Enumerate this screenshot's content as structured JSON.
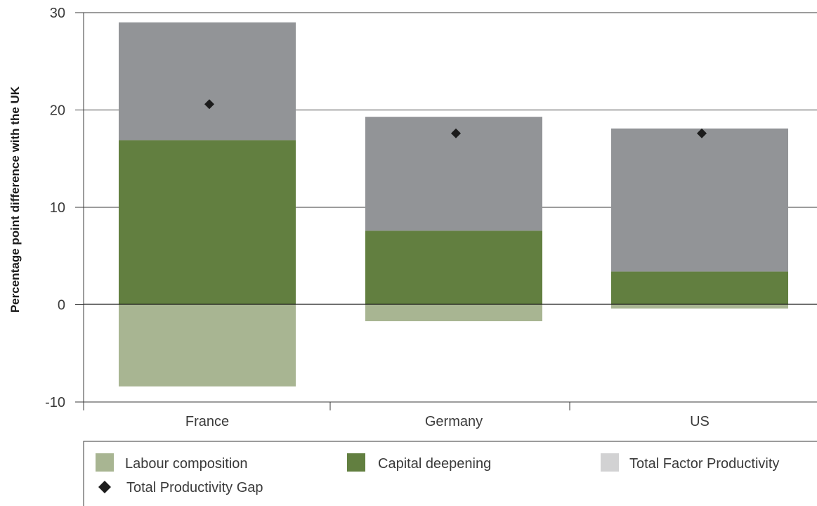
{
  "chart_data": {
    "type": "bar",
    "stacked": true,
    "categories": [
      "France",
      "Germany",
      "US"
    ],
    "ylabel": "Percentage point difference with the UK",
    "ylim": [
      -10,
      30
    ],
    "yticks": [
      30,
      20,
      10,
      0,
      -10
    ],
    "series": [
      {
        "name": "Labour composition",
        "values": [
          -8.4,
          -1.7,
          -0.4
        ],
        "color": "#a8b592"
      },
      {
        "name": "Capital deepening",
        "values": [
          16.9,
          7.6,
          3.4
        ],
        "color": "#627f40"
      },
      {
        "name": "Total Factor Productivity",
        "values": [
          12.1,
          11.7,
          14.7
        ],
        "color": "#929497"
      }
    ],
    "markers": {
      "name": "Total Productivity Gap",
      "values": [
        20.6,
        17.6,
        17.6
      ],
      "color": "#1c1c1c"
    },
    "legend_swatch_colors": {
      "Labour composition": "#a8b592",
      "Capital deepening": "#627f40",
      "Total Factor Productivity": "#d2d2d3"
    },
    "legend_position": "bottom",
    "grid": true
  }
}
